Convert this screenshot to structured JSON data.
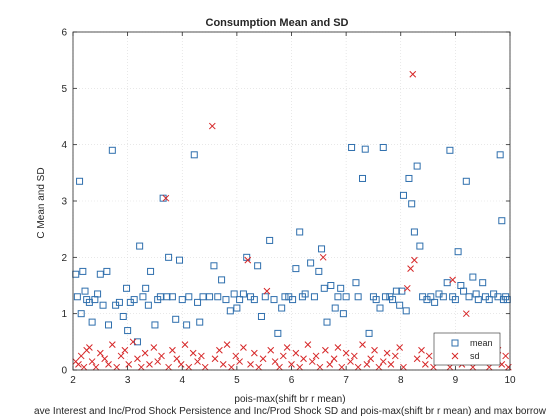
{
  "chart_data": {
    "type": "scatter",
    "title": "Consumption Mean and SD",
    "xlabel": "pois-max(shift br r mean)",
    "xlabel_line2": "ave Interest and Inc/Prod Shock Persistence and Inc/Prod Shock SD and pois-max(shift br r mean) and max borrow",
    "ylabel": "C Mean and SD",
    "xlim": [
      2,
      10
    ],
    "ylim": [
      0,
      6
    ],
    "xticks": [
      2,
      3,
      4,
      5,
      6,
      7,
      8,
      9,
      10
    ],
    "yticks": [
      0,
      1,
      2,
      3,
      4,
      5,
      6
    ],
    "grid": true,
    "legend": {
      "placement": "bottom-right",
      "entries": [
        "mean",
        "sd"
      ]
    },
    "colors": {
      "mean": "#2f6fad",
      "sd": "#d62728"
    },
    "series": [
      {
        "name": "mean",
        "marker": "square",
        "points": [
          [
            2.05,
            1.7
          ],
          [
            2.08,
            1.3
          ],
          [
            2.12,
            3.35
          ],
          [
            2.15,
            1.0
          ],
          [
            2.18,
            1.75
          ],
          [
            2.22,
            1.4
          ],
          [
            2.25,
            1.25
          ],
          [
            2.3,
            1.2
          ],
          [
            2.35,
            0.85
          ],
          [
            2.4,
            1.25
          ],
          [
            2.45,
            1.35
          ],
          [
            2.5,
            1.7
          ],
          [
            2.55,
            1.15
          ],
          [
            2.62,
            1.75
          ],
          [
            2.65,
            0.8
          ],
          [
            2.72,
            3.9
          ],
          [
            2.78,
            1.15
          ],
          [
            2.85,
            1.2
          ],
          [
            2.92,
            0.95
          ],
          [
            2.98,
            1.45
          ],
          [
            3.0,
            0.7
          ],
          [
            3.05,
            1.2
          ],
          [
            3.12,
            1.25
          ],
          [
            3.18,
            0.5
          ],
          [
            3.22,
            2.2
          ],
          [
            3.28,
            1.3
          ],
          [
            3.33,
            1.45
          ],
          [
            3.38,
            1.15
          ],
          [
            3.42,
            1.75
          ],
          [
            3.5,
            0.8
          ],
          [
            3.55,
            1.25
          ],
          [
            3.6,
            1.3
          ],
          [
            3.65,
            3.05
          ],
          [
            3.72,
            1.3
          ],
          [
            3.75,
            2.0
          ],
          [
            3.82,
            1.3
          ],
          [
            3.88,
            0.9
          ],
          [
            3.95,
            1.95
          ],
          [
            4.0,
            1.25
          ],
          [
            4.08,
            0.8
          ],
          [
            4.12,
            1.3
          ],
          [
            4.22,
            3.82
          ],
          [
            4.28,
            1.2
          ],
          [
            4.32,
            0.85
          ],
          [
            4.38,
            1.3
          ],
          [
            4.5,
            1.3
          ],
          [
            4.58,
            1.85
          ],
          [
            4.65,
            1.3
          ],
          [
            4.72,
            1.6
          ],
          [
            4.8,
            1.25
          ],
          [
            4.88,
            1.05
          ],
          [
            4.95,
            1.35
          ],
          [
            5.0,
            1.1
          ],
          [
            5.05,
            1.25
          ],
          [
            5.12,
            1.35
          ],
          [
            5.18,
            2.0
          ],
          [
            5.25,
            1.3
          ],
          [
            5.32,
            1.25
          ],
          [
            5.38,
            1.85
          ],
          [
            5.45,
            0.95
          ],
          [
            5.52,
            1.3
          ],
          [
            5.6,
            2.3
          ],
          [
            5.68,
            1.25
          ],
          [
            5.75,
            0.65
          ],
          [
            5.82,
            1.1
          ],
          [
            5.88,
            1.3
          ],
          [
            5.95,
            1.3
          ],
          [
            6.02,
            1.25
          ],
          [
            6.08,
            1.8
          ],
          [
            6.15,
            2.45
          ],
          [
            6.2,
            1.3
          ],
          [
            6.25,
            1.35
          ],
          [
            6.35,
            1.9
          ],
          [
            6.42,
            1.3
          ],
          [
            6.5,
            1.75
          ],
          [
            6.55,
            2.15
          ],
          [
            6.6,
            1.45
          ],
          [
            6.65,
            0.85
          ],
          [
            6.72,
            1.5
          ],
          [
            6.8,
            1.1
          ],
          [
            6.85,
            1.3
          ],
          [
            6.9,
            1.45
          ],
          [
            6.95,
            1.0
          ],
          [
            7.0,
            1.3
          ],
          [
            7.1,
            3.95
          ],
          [
            7.18,
            1.55
          ],
          [
            7.22,
            1.3
          ],
          [
            7.3,
            3.4
          ],
          [
            7.35,
            3.92
          ],
          [
            7.42,
            0.65
          ],
          [
            7.5,
            1.3
          ],
          [
            7.55,
            1.25
          ],
          [
            7.62,
            1.1
          ],
          [
            7.68,
            3.95
          ],
          [
            7.72,
            1.3
          ],
          [
            7.8,
            1.3
          ],
          [
            7.85,
            1.25
          ],
          [
            7.92,
            1.4
          ],
          [
            7.98,
            1.15
          ],
          [
            8.02,
            1.4
          ],
          [
            8.05,
            3.1
          ],
          [
            8.1,
            1.05
          ],
          [
            8.15,
            3.4
          ],
          [
            8.2,
            2.95
          ],
          [
            8.25,
            2.45
          ],
          [
            8.3,
            3.62
          ],
          [
            8.35,
            2.2
          ],
          [
            8.4,
            1.3
          ],
          [
            8.48,
            1.25
          ],
          [
            8.55,
            1.3
          ],
          [
            8.62,
            1.2
          ],
          [
            8.7,
            1.35
          ],
          [
            8.78,
            1.3
          ],
          [
            8.85,
            1.55
          ],
          [
            8.9,
            3.9
          ],
          [
            8.95,
            1.3
          ],
          [
            9.0,
            1.25
          ],
          [
            9.05,
            2.1
          ],
          [
            9.1,
            1.5
          ],
          [
            9.15,
            1.4
          ],
          [
            9.2,
            3.35
          ],
          [
            9.25,
            1.3
          ],
          [
            9.32,
            1.65
          ],
          [
            9.38,
            1.35
          ],
          [
            9.42,
            1.25
          ],
          [
            9.5,
            1.55
          ],
          [
            9.55,
            1.3
          ],
          [
            9.62,
            1.25
          ],
          [
            9.7,
            1.35
          ],
          [
            9.78,
            1.3
          ],
          [
            9.82,
            3.82
          ],
          [
            9.85,
            2.65
          ],
          [
            9.88,
            1.25
          ],
          [
            9.92,
            1.3
          ],
          [
            9.95,
            1.25
          ]
        ]
      },
      {
        "name": "sd",
        "marker": "x",
        "points": [
          [
            2.05,
            0.15
          ],
          [
            2.1,
            0.1
          ],
          [
            2.15,
            0.25
          ],
          [
            2.2,
            0.05
          ],
          [
            2.25,
            0.35
          ],
          [
            2.3,
            0.4
          ],
          [
            2.35,
            0.15
          ],
          [
            2.42,
            0.05
          ],
          [
            2.5,
            0.3
          ],
          [
            2.58,
            0.2
          ],
          [
            2.65,
            0.1
          ],
          [
            2.72,
            0.45
          ],
          [
            2.8,
            0.05
          ],
          [
            2.88,
            0.25
          ],
          [
            2.95,
            0.35
          ],
          [
            3.02,
            0.1
          ],
          [
            3.1,
            0.5
          ],
          [
            3.18,
            0.2
          ],
          [
            3.25,
            0.05
          ],
          [
            3.32,
            0.3
          ],
          [
            3.4,
            0.1
          ],
          [
            3.48,
            0.4
          ],
          [
            3.55,
            0.15
          ],
          [
            3.62,
            0.25
          ],
          [
            3.7,
            3.05
          ],
          [
            3.75,
            0.05
          ],
          [
            3.82,
            0.35
          ],
          [
            3.9,
            0.2
          ],
          [
            3.98,
            0.1
          ],
          [
            4.05,
            0.45
          ],
          [
            4.12,
            0.05
          ],
          [
            4.2,
            0.3
          ],
          [
            4.28,
            0.15
          ],
          [
            4.35,
            0.25
          ],
          [
            4.42,
            0.05
          ],
          [
            4.55,
            4.33
          ],
          [
            4.6,
            0.2
          ],
          [
            4.68,
            0.35
          ],
          [
            4.75,
            0.1
          ],
          [
            4.82,
            0.45
          ],
          [
            4.9,
            0.05
          ],
          [
            4.98,
            0.25
          ],
          [
            5.05,
            0.15
          ],
          [
            5.12,
            0.4
          ],
          [
            5.2,
            1.95
          ],
          [
            5.25,
            0.1
          ],
          [
            5.32,
            0.3
          ],
          [
            5.4,
            0.05
          ],
          [
            5.48,
            0.2
          ],
          [
            5.55,
            1.4
          ],
          [
            5.62,
            0.35
          ],
          [
            5.7,
            0.15
          ],
          [
            5.78,
            0.05
          ],
          [
            5.85,
            0.25
          ],
          [
            5.92,
            0.4
          ],
          [
            6.0,
            0.1
          ],
          [
            6.08,
            0.3
          ],
          [
            6.15,
            0.05
          ],
          [
            6.22,
            0.2
          ],
          [
            6.3,
            0.45
          ],
          [
            6.38,
            0.15
          ],
          [
            6.45,
            0.25
          ],
          [
            6.52,
            0.05
          ],
          [
            6.58,
            2.0
          ],
          [
            6.62,
            0.35
          ],
          [
            6.7,
            0.1
          ],
          [
            6.78,
            0.2
          ],
          [
            6.85,
            0.4
          ],
          [
            6.92,
            0.05
          ],
          [
            7.0,
            0.3
          ],
          [
            7.08,
            0.15
          ],
          [
            7.15,
            0.25
          ],
          [
            7.22,
            0.05
          ],
          [
            7.3,
            0.45
          ],
          [
            7.38,
            0.1
          ],
          [
            7.45,
            0.2
          ],
          [
            7.52,
            0.35
          ],
          [
            7.6,
            0.05
          ],
          [
            7.68,
            0.15
          ],
          [
            7.75,
            0.3
          ],
          [
            7.82,
            0.1
          ],
          [
            7.9,
            0.25
          ],
          [
            7.98,
            0.4
          ],
          [
            8.05,
            0.05
          ],
          [
            8.12,
            1.45
          ],
          [
            8.18,
            1.8
          ],
          [
            8.22,
            5.25
          ],
          [
            8.25,
            1.95
          ],
          [
            8.3,
            0.2
          ],
          [
            8.38,
            0.35
          ],
          [
            8.45,
            0.1
          ],
          [
            8.52,
            0.25
          ],
          [
            8.6,
            0.05
          ],
          [
            8.68,
            0.4
          ],
          [
            8.75,
            0.15
          ],
          [
            8.82,
            0.3
          ],
          [
            8.9,
            0.05
          ],
          [
            8.95,
            1.6
          ],
          [
            8.98,
            0.2
          ],
          [
            9.05,
            0.35
          ],
          [
            9.12,
            0.1
          ],
          [
            9.2,
            1.0
          ],
          [
            9.25,
            0.25
          ],
          [
            9.32,
            0.05
          ],
          [
            9.4,
            0.4
          ],
          [
            9.48,
            0.15
          ],
          [
            9.55,
            0.3
          ],
          [
            9.62,
            0.05
          ],
          [
            9.7,
            0.2
          ],
          [
            9.78,
            0.35
          ],
          [
            9.85,
            0.1
          ],
          [
            9.92,
            0.25
          ],
          [
            9.97,
            0.05
          ]
        ]
      }
    ]
  }
}
